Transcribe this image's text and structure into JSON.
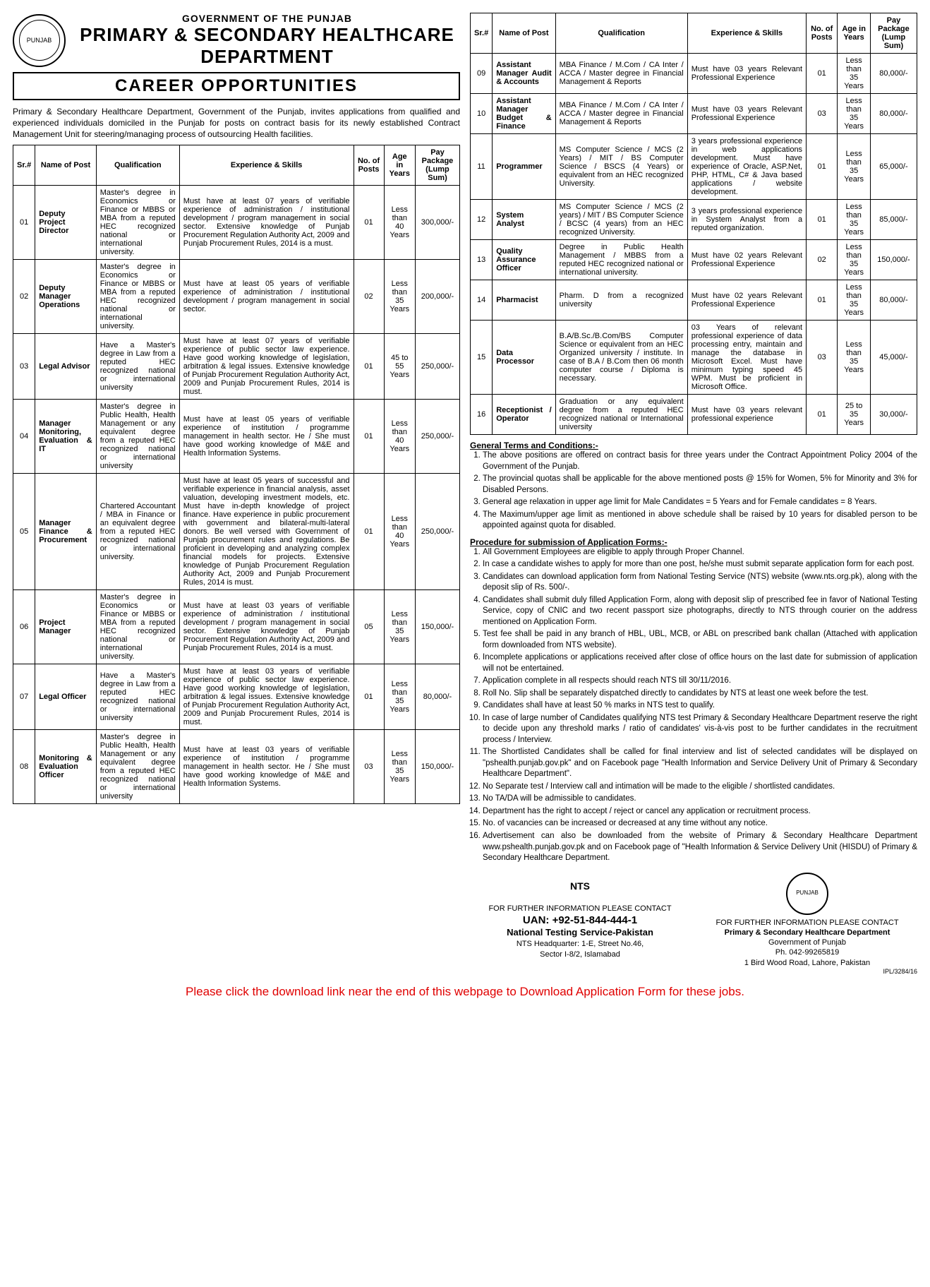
{
  "header": {
    "gov": "GOVERNMENT OF THE PUNJAB",
    "dept": "PRIMARY & SECONDARY HEALTHCARE DEPARTMENT",
    "career": "CAREER OPPORTUNITIES",
    "seal_text": "PUNJAB"
  },
  "intro": "Primary & Secondary Healthcare Department, Government of the Punjab, invites applications from qualified and experienced individuals domiciled in the Punjab for posts on contract basis for its newly established Contract Management Unit for steering/managing process of outsourcing Health facilities.",
  "table_headers": {
    "sr": "Sr.#",
    "name": "Name of Post",
    "qual": "Qualification",
    "exp": "Experience & Skills",
    "num": "No. of Posts",
    "age": "Age in Years",
    "pay": "Pay Package (Lump Sum)"
  },
  "rows_left": [
    {
      "sr": "01",
      "name": "Deputy Project Director",
      "qual": "Master's degree in Economics or Finance or MBBS or MBA from a reputed HEC recognized national or international university.",
      "exp": "Must have at least 07 years of verifiable experience of administration / institutional development / program management in social sector. Extensive knowledge of Punjab Procurement Regulation Authority Act, 2009 and Punjab Procurement Rules, 2014 is a must.",
      "num": "01",
      "age": "Less than 40 Years",
      "pay": "300,000/-"
    },
    {
      "sr": "02",
      "name": "Deputy Manager Operations",
      "qual": "Master's degree in Economics or Finance or MBBS or MBA from a reputed HEC recognized national or international university.",
      "exp": "Must have at least 05 years of verifiable experience of administration / institutional development / program management in social sector.",
      "num": "02",
      "age": "Less than 35 Years",
      "pay": "200,000/-"
    },
    {
      "sr": "03",
      "name": "Legal Advisor",
      "qual": "Have a Master's degree in Law from a reputed HEC recognized national or international university",
      "exp": "Must have at least 07 years of verifiable experience of public sector law experience. Have good working knowledge of legislation, arbitration & legal issues. Extensive knowledge of Punjab Procurement Regulation Authority Act, 2009 and Punjab Procurement Rules, 2014 is must.",
      "num": "01",
      "age": "45 to 55 Years",
      "pay": "250,000/-"
    },
    {
      "sr": "04",
      "name": "Manager Monitoring, Evaluation & IT",
      "qual": "Master's degree in Public Health, Health Management or any equivalent degree from a reputed HEC recognized national or international university",
      "exp": "Must have at least 05 years of verifiable experience of institution / programme management in health sector. He / She must have good working knowledge of M&E and Health Information Systems.",
      "num": "01",
      "age": "Less than 40 Years",
      "pay": "250,000/-"
    },
    {
      "sr": "05",
      "name": "Manager Finance & Procurement",
      "qual": "Chartered Accountant / MBA in Finance or an equivalent degree from a reputed HEC recognized national or international university.",
      "exp": "Must have at least 05 years of successful and verifiable experience in financial analysis, asset valuation, developing investment models, etc. Must have in-depth knowledge of project finance. Have experience in public procurement with government and bilateral-multi-lateral donors. Be well versed with Government of Punjab procurement rules and regulations. Be proficient in developing and analyzing complex financial models for projects. Extensive knowledge of Punjab Procurement Regulation Authority Act, 2009 and Punjab Procurement Rules, 2014 is must.",
      "num": "01",
      "age": "Less than 40 Years",
      "pay": "250,000/-"
    },
    {
      "sr": "06",
      "name": "Project Manager",
      "qual": "Master's degree in Economics or Finance or MBBS or MBA from a reputed HEC recognized national or international university.",
      "exp": "Must have at least 03 years of verifiable experience of administration / institutional development / program management in social sector. Extensive knowledge of Punjab Procurement Regulation Authority Act, 2009 and Punjab Procurement Rules, 2014 is a must.",
      "num": "05",
      "age": "Less than 35 Years",
      "pay": "150,000/-"
    },
    {
      "sr": "07",
      "name": "Legal Officer",
      "qual": "Have a Master's degree in Law from a reputed HEC recognized national or international university",
      "exp": "Must have at least 03 years of verifiable experience of public sector law experience. Have good working knowledge of legislation, arbitration & legal issues. Extensive knowledge of Punjab Procurement Regulation Authority Act, 2009 and Punjab Procurement Rules, 2014 is must.",
      "num": "01",
      "age": "Less than 35 Years",
      "pay": "80,000/-"
    },
    {
      "sr": "08",
      "name": "Monitoring & Evaluation Officer",
      "qual": "Master's degree in Public Health, Health Management or any equivalent degree from a reputed HEC recognized national or international university",
      "exp": "Must have at least 03 years of verifiable experience of institution / programme management in health sector. He / She must have good working knowledge of M&E and Health Information Systems.",
      "num": "03",
      "age": "Less than 35 Years",
      "pay": "150,000/-"
    }
  ],
  "rows_right": [
    {
      "sr": "09",
      "name": "Assistant Manager Audit & Accounts",
      "qual": "MBA Finance / M.Com / CA Inter / ACCA / Master degree in Financial Management & Reports",
      "exp": "Must have 03 years Relevant Professional Experience",
      "num": "01",
      "age": "Less than 35 Years",
      "pay": "80,000/-"
    },
    {
      "sr": "10",
      "name": "Assistant Manager Budget & Finance",
      "qual": "MBA Finance / M.Com / CA Inter / ACCA / Master degree in Financial Management & Reports",
      "exp": "Must have 03 years Relevant Professional Experience",
      "num": "03",
      "age": "Less than 35 Years",
      "pay": "80,000/-"
    },
    {
      "sr": "11",
      "name": "Programmer",
      "qual": "MS Computer Science / MCS (2 Years) / MIT / BS Computer Science / BSCS (4 Years) or equivalent from an HEC recognized University.",
      "exp": "3 years professional experience in web applications development. Must have experience of Oracle, ASP.Net, PHP, HTML, C# & Java based applications / website development.",
      "num": "01",
      "age": "Less than 35 Years",
      "pay": "65,000/-"
    },
    {
      "sr": "12",
      "name": "System Analyst",
      "qual": "MS Computer Science / MCS (2 years) / MIT / BS Computer Science / BCSC (4 years) from an HEC recognized University.",
      "exp": "3 years professional experience in System Analyst from a reputed organization.",
      "num": "01",
      "age": "Less than 35 Years",
      "pay": "85,000/-"
    },
    {
      "sr": "13",
      "name": "Quality Assurance Officer",
      "qual": "Degree in Public Health Management / MBBS from a reputed HEC recognized national or international university.",
      "exp": "Must have 02 years Relevant Professional Experience",
      "num": "02",
      "age": "Less than 35 Years",
      "pay": "150,000/-"
    },
    {
      "sr": "14",
      "name": "Pharmacist",
      "qual": "Pharm. D from a recognized university",
      "exp": "Must have 02 years Relevant Professional Experience",
      "num": "01",
      "age": "Less than 35 Years",
      "pay": "80,000/-"
    },
    {
      "sr": "15",
      "name": "Data Processor",
      "qual": "B.A/B.Sc./B.Com/BS Computer Science or equivalent from an HEC Organized university / institute. In case of B.A / B.Com then 06 month computer course / Diploma is necessary.",
      "exp": "03 Years of relevant professional experience of data processing entry, maintain and manage the database in Microsoft Excel. Must have minimum typing speed 45 WPM. Must be proficient in Microsoft Office.",
      "num": "03",
      "age": "Less than 35 Years",
      "pay": "45,000/-"
    },
    {
      "sr": "16",
      "name": "Receptionist / Operator",
      "qual": "Graduation or any equivalent degree from a reputed HEC recognized national or International university",
      "exp": "Must have 03 years relevant professional experience",
      "num": "01",
      "age": "25 to 35 Years",
      "pay": "30,000/-"
    }
  ],
  "general_terms_heading": "General Terms and Conditions:-",
  "general_terms": [
    "The above positions are offered on contract basis for three years under the Contract Appointment Policy 2004 of the Government of the Punjab.",
    "The provincial quotas shall be applicable for the above mentioned posts @ 15% for Women, 5% for Minority and 3% for Disabled Persons.",
    "General age relaxation in upper age limit for Male Candidates = 5 Years and for Female candidates = 8 Years.",
    "The Maximum/upper age limit as mentioned in above schedule shall be raised by 10 years for disabled person to be appointed against quota for disabled."
  ],
  "procedure_heading": "Procedure for submission of Application Forms:-",
  "procedure": [
    "All Government Employees are eligible to apply through Proper Channel.",
    "In case a candidate wishes to apply for more than one post, he/she must submit separate application form for each post.",
    "Candidates can download application form from National Testing Service (NTS) website (www.nts.org.pk), along with the deposit slip of Rs. 500/-.",
    "Candidates shall submit duly filled Application Form, along with deposit slip of prescribed fee in favor of National Testing Service, copy of CNIC and two recent passport size photographs, directly to NTS through courier on the address mentioned on Application Form.",
    "Test fee shall be paid in any branch of HBL, UBL, MCB, or ABL on prescribed bank challan (Attached with application form downloaded from NTS website).",
    "Incomplete applications or applications received after close of office hours on the last date for submission of application will not be entertained.",
    "Application complete in all respects should reach NTS till 30/11/2016.",
    "Roll No. Slip shall be separately dispatched directly to candidates by NTS at least one week before the test.",
    "Candidates shall have at least 50 % marks in NTS test to qualify.",
    "In case of large number of Candidates qualifying NTS test Primary & Secondary Healthcare Department reserve the right to decide upon any threshold marks / ratio of candidates' vis-à-vis post to be further candidates in the recruitment process / Interview.",
    "The Shortlisted Candidates shall be called for final interview and list of selected candidates will be displayed on \"pshealth.punjab.gov.pk\" and on Facebook page \"Health Information and Service Delivery Unit of Primary & Secondary Healthcare Department\".",
    "No Separate test / Interview call and intimation will be made to the eligible / shortlisted candidates.",
    "No TA/DA will be admissible to candidates.",
    "Department has the right to accept / reject or cancel any application or recruitment process.",
    "No. of vacancies can be increased or decreased at any time without any notice.",
    "Advertisement can also be downloaded from the website of Primary & Secondary Healthcare Department www.pshealth.punjab.gov.pk and on Facebook page of \"Health Information & Service Delivery Unit (HISDU) of Primary & Secondary Healthcare Department."
  ],
  "footer": {
    "nts_logo": "NTS",
    "nts_info_line": "FOR FURTHER INFORMATION PLEASE CONTACT",
    "uan": "UAN: +92-51-844-444-1",
    "nts_name": "National Testing Service-Pakistan",
    "nts_addr1": "NTS Headquarter: 1-E, Street No.46,",
    "nts_addr2": "Sector I-8/2, Islamabad",
    "dept_info_line": "FOR FURTHER INFORMATION PLEASE CONTACT",
    "dept_name": "Primary & Secondary Healthcare Department",
    "dept_gov": "Government of Punjab",
    "dept_ph": "Ph. 042-99265819",
    "dept_addr": "1 Bird Wood Road, Lahore, Pakistan",
    "ipl": "IPL/3284/16"
  },
  "bottom_note": "Please click the download link near the end of this webpage to Download Application Form for these jobs."
}
